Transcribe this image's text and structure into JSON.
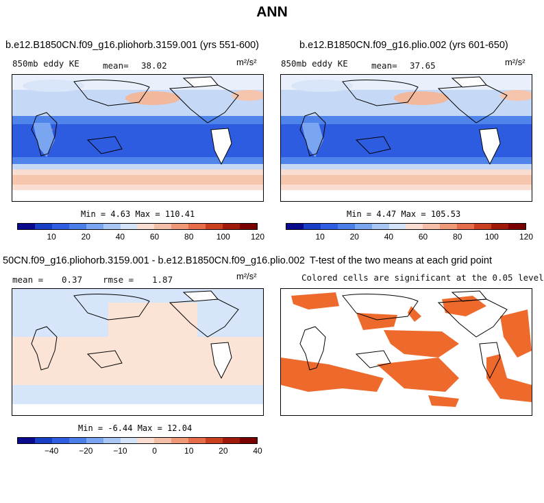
{
  "page_title": "ANN",
  "panels": [
    {
      "title": "b.e12.B1850CN.f09_g16.pliohorb.3159.001 (yrs 551-600)",
      "subtitle": "850mb eddy KE",
      "mean_label": "mean=",
      "mean_value": "38.02",
      "units": "m²/s²",
      "stats": "Min =    4.63 Max = 110.41"
    },
    {
      "title": "b.e12.B1850CN.f09_g16.plio.002 (yrs 601-650)",
      "subtitle": "850mb eddy KE",
      "mean_label": "mean=",
      "mean_value": "37.65",
      "units": "m²/s²",
      "stats": "Min =    4.47 Max = 105.53"
    },
    {
      "title": "50CN.f09_g16.pliohorb.3159.001 - b.e12.B1850CN.f09_g16.plio.002",
      "mean_label": "mean =",
      "mean_value": "0.37",
      "rmse_label": "rmse =",
      "rmse_value": "1.87",
      "units": "m²/s²",
      "stats": "Min =  -6.44 Max =  12.04"
    },
    {
      "title": "T-test of the two means at each grid point",
      "subtitle": "Colored cells are significant at the 0.05 level"
    }
  ],
  "colorbars": {
    "field": {
      "colors": [
        "#0a0a8c",
        "#1a3fc7",
        "#2f5fe0",
        "#4a7fe8",
        "#7aa5f0",
        "#a9c7f5",
        "#d3e3f8",
        "#f8ddd0",
        "#f5bea6",
        "#ef9878",
        "#e56d4b",
        "#c9401f",
        "#a01a0a",
        "#7a0000"
      ],
      "ticks": [
        "10",
        "20",
        "40",
        "60",
        "80",
        "100",
        "120"
      ]
    },
    "diff": {
      "colors": [
        "#0a0a8c",
        "#1a3fc7",
        "#2f5fe0",
        "#4a7fe8",
        "#7aa5f0",
        "#a9c7f5",
        "#d3e3f8",
        "#f8ddd0",
        "#f5bea6",
        "#ef9878",
        "#e56d4b",
        "#c9401f",
        "#a01a0a",
        "#7a0000"
      ],
      "ticks": [
        "−40",
        "−20",
        "−10",
        "0",
        "10",
        "20",
        "40"
      ]
    }
  },
  "chart_data": [
    {
      "type": "heatmap",
      "title": "b.e12.B1850CN.f09_g16.pliohorb.3159.001 (yrs 551-600)",
      "variable": "850mb eddy KE",
      "units": "m²/s²",
      "mean": 38.02,
      "min": 4.63,
      "max": 110.41,
      "colorbar_ticks": [
        10,
        20,
        40,
        60,
        80,
        100,
        120
      ]
    },
    {
      "type": "heatmap",
      "title": "b.e12.B1850CN.f09_g16.plio.002 (yrs 601-650)",
      "variable": "850mb eddy KE",
      "units": "m²/s²",
      "mean": 37.65,
      "min": 4.47,
      "max": 105.53,
      "colorbar_ticks": [
        10,
        20,
        40,
        60,
        80,
        100,
        120
      ]
    },
    {
      "type": "heatmap",
      "title": "50CN.f09_g16.pliohorb.3159.001 - b.e12.B1850CN.f09_g16.plio.002",
      "units": "m²/s²",
      "mean": 0.37,
      "rmse": 1.87,
      "min": -6.44,
      "max": 12.04,
      "colorbar_ticks": [
        -40,
        -20,
        -10,
        0,
        10,
        20,
        40
      ]
    },
    {
      "type": "heatmap",
      "title": "T-test of the two means at each grid point",
      "note": "Colored cells are significant at the 0.05 level",
      "significant_color": "#ee6a2c"
    }
  ]
}
